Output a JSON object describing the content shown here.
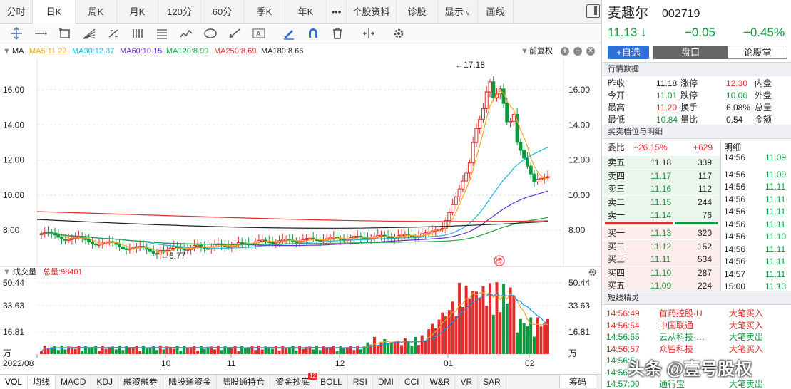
{
  "period_tabs": [
    {
      "label": "分时",
      "w": 46
    },
    {
      "label": "日K",
      "w": 60,
      "active": true
    },
    {
      "label": "周K",
      "w": 58
    },
    {
      "label": "月K",
      "w": 58
    },
    {
      "label": "120分",
      "w": 60
    },
    {
      "label": "60分",
      "w": 60
    },
    {
      "label": "季K",
      "w": 58
    },
    {
      "label": "年K",
      "w": 58
    },
    {
      "label": "•••",
      "w": 28
    },
    {
      "label": "个股资料",
      "w": 70
    },
    {
      "label": "诊股",
      "w": 58
    },
    {
      "label": "显示",
      "w": 56,
      "dropdown": true
    },
    {
      "label": "画线",
      "w": 50
    }
  ],
  "ma_legend": {
    "title": "MA",
    "items": [
      {
        "label": "MA5:11.22",
        "color": "#f5a623"
      },
      {
        "label": "MA30:12.37",
        "color": "#1bb6e5"
      },
      {
        "label": "MA60:10.15",
        "color": "#6b2bd6"
      },
      {
        "label": "MA120:8.99",
        "color": "#1fa84a"
      },
      {
        "label": "MA250:8.69",
        "color": "#e62b2b"
      },
      {
        "label": "MA180:8.66",
        "color": "#222222"
      }
    ],
    "adjust": "前复权"
  },
  "price_chart": {
    "y_ticks": [
      "16.00",
      "14.00",
      "12.00",
      "10.00",
      "8.00"
    ],
    "high_label": "←17.18",
    "low_label": "←6.77",
    "badge": "榜"
  },
  "volume_chart": {
    "title": "成交量",
    "total": "总量:98401",
    "y_ticks": [
      "50.44",
      "33.63",
      "16.81",
      "万"
    ]
  },
  "x_labels": [
    "2022/08",
    "10",
    "11",
    "12",
    "01",
    "02"
  ],
  "indicator_tabs": [
    "VOL",
    "均线",
    "MACD",
    "KDJ",
    "融资融券",
    "陆股通资金",
    "陆股通持仓",
    "资金抄底",
    "BOLL",
    "RSI",
    "DMI",
    "CCI",
    "W&R",
    "VR",
    "SAR"
  ],
  "indicator_badge": "12",
  "chips_label": "筹码",
  "stock": {
    "name": "麦趣尔",
    "code": "002719",
    "price": "11.13",
    "change": "−0.05",
    "change_pct": "−0.45%",
    "add_fav": "+自选",
    "tabs": [
      "盘口",
      "论股堂"
    ]
  },
  "quote": {
    "title": "行情数据",
    "rows": [
      [
        "昨收",
        "11.18",
        "涨停",
        "12.30",
        "内盘",
        ""
      ],
      [
        "今开",
        "11.01",
        "跌停",
        "10.06",
        "外盘",
        ""
      ],
      [
        "最高",
        "11.20",
        "换手",
        "6.08%",
        "总量",
        ""
      ],
      [
        "最低",
        "10.84",
        "量比",
        "0.54",
        "金额",
        ""
      ]
    ]
  },
  "orderbook": {
    "title": "买卖档位与明细",
    "ratio_label": "委比",
    "ratio": "+26.15%",
    "diff": "+629",
    "asks": [
      [
        "卖五",
        "11.18",
        "339"
      ],
      [
        "卖四",
        "11.17",
        "117"
      ],
      [
        "卖三",
        "11.16",
        "112"
      ],
      [
        "卖二",
        "11.15",
        "244"
      ],
      [
        "卖一",
        "11.14",
        "76"
      ]
    ],
    "bids": [
      [
        "买一",
        "11.13",
        "320"
      ],
      [
        "买二",
        "11.12",
        "152"
      ],
      [
        "买三",
        "11.11",
        "534"
      ],
      [
        "买四",
        "11.10",
        "287"
      ],
      [
        "买五",
        "11.09",
        "224"
      ]
    ]
  },
  "detail": {
    "title": "明细",
    "rows": [
      [
        "14:56",
        "11.09"
      ],
      [
        "14:56",
        "11.09"
      ],
      [
        "14:56",
        "11.11"
      ],
      [
        "14:56",
        "11.11"
      ],
      [
        "14:56",
        "11.11"
      ],
      [
        "14:56",
        "11.11"
      ],
      [
        "14:56",
        "11.10"
      ],
      [
        "14:56",
        "11.11"
      ],
      [
        "14:56",
        "11.11"
      ],
      [
        "14:57",
        "11.11"
      ],
      [
        "15:00",
        "11.13"
      ]
    ]
  },
  "short_spirit": {
    "title": "短线精灵",
    "rows": [
      [
        "14:56:49",
        "首药控股-U",
        "大笔买入"
      ],
      [
        "14:56:54",
        "中国联通",
        "大笔买入"
      ],
      [
        "14:56:55",
        "云从科技-…",
        "大笔卖出"
      ],
      [
        "14:56:57",
        "众智科技",
        "大笔买入"
      ],
      [
        "14:56:5",
        "",
        ""
      ],
      [
        "14:56:5",
        "",
        ""
      ],
      [
        "14:57:00",
        "通行宝",
        "大笔卖出"
      ]
    ]
  },
  "watermark": "头条 @壹号股权"
}
